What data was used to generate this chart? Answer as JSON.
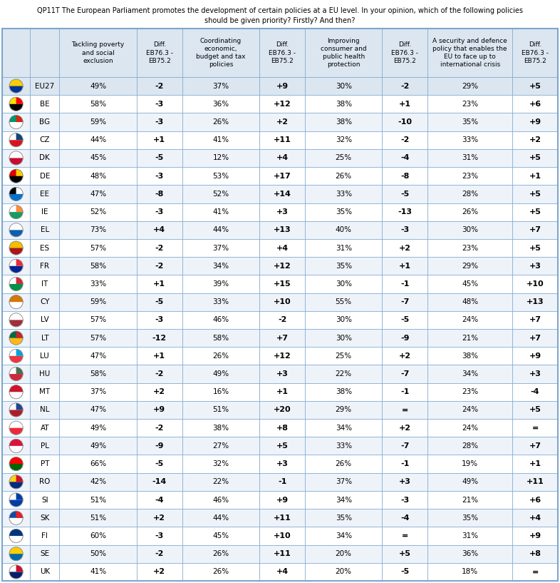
{
  "title_line1": "QP11T The European Parliament promotes the development of certain policies at a EU level. In your opinion, which of the following policies",
  "title_line2": "should be given priority? Firstly? And then?",
  "col_headers": [
    "Tackling poverty\nand social\nexclusion",
    "Diff.\nEB76.3 -\nEB75.2",
    "Coordinating\neconomic,\nbudget and tax\npolicies",
    "Diff.\nEB76.3 -\nEB75.2",
    "Improving\nconsumer and\npublic health\nprotection",
    "Diff.\nEB76.3 -\nEB75.2",
    "A security and defence\npolicy that enables the\nEU to face up to\ninternational crisis",
    "Diff.\nEB76.3 -\nEB75.2"
  ],
  "rows": [
    {
      "country": "EU27",
      "v1": "49%",
      "d1": "-2",
      "v2": "37%",
      "d2": "+9",
      "v3": "30%",
      "d3": "-2",
      "v4": "29%",
      "d4": "+5",
      "eu27": true
    },
    {
      "country": "BE",
      "v1": "58%",
      "d1": "-3",
      "v2": "36%",
      "d2": "+12",
      "v3": "38%",
      "d3": "+1",
      "v4": "23%",
      "d4": "+6"
    },
    {
      "country": "BG",
      "v1": "59%",
      "d1": "-3",
      "v2": "26%",
      "d2": "+2",
      "v3": "38%",
      "d3": "-10",
      "v4": "35%",
      "d4": "+9"
    },
    {
      "country": "CZ",
      "v1": "44%",
      "d1": "+1",
      "v2": "41%",
      "d2": "+11",
      "v3": "32%",
      "d3": "-2",
      "v4": "33%",
      "d4": "+2"
    },
    {
      "country": "DK",
      "v1": "45%",
      "d1": "-5",
      "v2": "12%",
      "d2": "+4",
      "v3": "25%",
      "d3": "-4",
      "v4": "31%",
      "d4": "+5"
    },
    {
      "country": "DE",
      "v1": "48%",
      "d1": "-3",
      "v2": "53%",
      "d2": "+17",
      "v3": "26%",
      "d3": "-8",
      "v4": "23%",
      "d4": "+1"
    },
    {
      "country": "EE",
      "v1": "47%",
      "d1": "-8",
      "v2": "52%",
      "d2": "+14",
      "v3": "33%",
      "d3": "-5",
      "v4": "28%",
      "d4": "+5"
    },
    {
      "country": "IE",
      "v1": "52%",
      "d1": "-3",
      "v2": "41%",
      "d2": "+3",
      "v3": "35%",
      "d3": "-13",
      "v4": "26%",
      "d4": "+5"
    },
    {
      "country": "EL",
      "v1": "73%",
      "d1": "+4",
      "v2": "44%",
      "d2": "+13",
      "v3": "40%",
      "d3": "-3",
      "v4": "30%",
      "d4": "+7"
    },
    {
      "country": "ES",
      "v1": "57%",
      "d1": "-2",
      "v2": "37%",
      "d2": "+4",
      "v3": "31%",
      "d3": "+2",
      "v4": "23%",
      "d4": "+5"
    },
    {
      "country": "FR",
      "v1": "58%",
      "d1": "-2",
      "v2": "34%",
      "d2": "+12",
      "v3": "35%",
      "d3": "+1",
      "v4": "29%",
      "d4": "+3"
    },
    {
      "country": "IT",
      "v1": "33%",
      "d1": "+1",
      "v2": "39%",
      "d2": "+15",
      "v3": "30%",
      "d3": "-1",
      "v4": "45%",
      "d4": "+10"
    },
    {
      "country": "CY",
      "v1": "59%",
      "d1": "-5",
      "v2": "33%",
      "d2": "+10",
      "v3": "55%",
      "d3": "-7",
      "v4": "48%",
      "d4": "+13"
    },
    {
      "country": "LV",
      "v1": "57%",
      "d1": "-3",
      "v2": "46%",
      "d2": "-2",
      "v3": "30%",
      "d3": "-5",
      "v4": "24%",
      "d4": "+7"
    },
    {
      "country": "LT",
      "v1": "57%",
      "d1": "-12",
      "v2": "58%",
      "d2": "+7",
      "v3": "30%",
      "d3": "-9",
      "v4": "21%",
      "d4": "+7"
    },
    {
      "country": "LU",
      "v1": "47%",
      "d1": "+1",
      "v2": "26%",
      "d2": "+12",
      "v3": "25%",
      "d3": "+2",
      "v4": "38%",
      "d4": "+9"
    },
    {
      "country": "HU",
      "v1": "58%",
      "d1": "-2",
      "v2": "49%",
      "d2": "+3",
      "v3": "22%",
      "d3": "-7",
      "v4": "34%",
      "d4": "+3"
    },
    {
      "country": "MT",
      "v1": "37%",
      "d1": "+2",
      "v2": "16%",
      "d2": "+1",
      "v3": "38%",
      "d3": "-1",
      "v4": "23%",
      "d4": "-4"
    },
    {
      "country": "NL",
      "v1": "47%",
      "d1": "+9",
      "v2": "51%",
      "d2": "+20",
      "v3": "29%",
      "d3": "=",
      "v4": "24%",
      "d4": "+5"
    },
    {
      "country": "AT",
      "v1": "49%",
      "d1": "-2",
      "v2": "38%",
      "d2": "+8",
      "v3": "34%",
      "d3": "+2",
      "v4": "24%",
      "d4": "="
    },
    {
      "country": "PL",
      "v1": "49%",
      "d1": "-9",
      "v2": "27%",
      "d2": "+5",
      "v3": "33%",
      "d3": "-7",
      "v4": "28%",
      "d4": "+7"
    },
    {
      "country": "PT",
      "v1": "66%",
      "d1": "-5",
      "v2": "32%",
      "d2": "+3",
      "v3": "26%",
      "d3": "-1",
      "v4": "19%",
      "d4": "+1"
    },
    {
      "country": "RO",
      "v1": "42%",
      "d1": "-14",
      "v2": "22%",
      "d2": "-1",
      "v3": "37%",
      "d3": "+3",
      "v4": "49%",
      "d4": "+11"
    },
    {
      "country": "SI",
      "v1": "51%",
      "d1": "-4",
      "v2": "46%",
      "d2": "+9",
      "v3": "34%",
      "d3": "-3",
      "v4": "21%",
      "d4": "+6"
    },
    {
      "country": "SK",
      "v1": "51%",
      "d1": "+2",
      "v2": "44%",
      "d2": "+11",
      "v3": "35%",
      "d3": "-4",
      "v4": "35%",
      "d4": "+4"
    },
    {
      "country": "FI",
      "v1": "60%",
      "d1": "-3",
      "v2": "45%",
      "d2": "+10",
      "v3": "34%",
      "d3": "=",
      "v4": "31%",
      "d4": "+9"
    },
    {
      "country": "SE",
      "v1": "50%",
      "d1": "-2",
      "v2": "26%",
      "d2": "+11",
      "v3": "20%",
      "d3": "+5",
      "v4": "36%",
      "d4": "+8"
    },
    {
      "country": "UK",
      "v1": "41%",
      "d1": "+2",
      "v2": "26%",
      "d2": "+4",
      "v3": "20%",
      "d3": "-5",
      "v4": "18%",
      "d4": "="
    }
  ],
  "header_bg": "#dce6f1",
  "eu27_bg": "#dce6f1",
  "row_bg_even": "#ffffff",
  "row_bg_odd": "#eef3fa",
  "border_color": "#7ba7cc",
  "title_color": "#000000",
  "flag_colors": {
    "EU27": [
      "#003399",
      "#ffcc00"
    ],
    "BE": [
      "#000000",
      "#ffdd00",
      "#ff0000"
    ],
    "BG": [
      "#ffffff",
      "#00966e",
      "#d62512"
    ],
    "CZ": [
      "#d7141a",
      "#ffffff",
      "#11457e"
    ],
    "DK": [
      "#c60c30",
      "#ffffff"
    ],
    "DE": [
      "#000000",
      "#dd0000",
      "#ffce00"
    ],
    "EE": [
      "#0072ce",
      "#000000",
      "#ffffff"
    ],
    "IE": [
      "#169b62",
      "#ffffff",
      "#ff883e"
    ],
    "EL": [
      "#0d5eaf",
      "#ffffff"
    ],
    "ES": [
      "#aa151b",
      "#f1bf00"
    ],
    "FR": [
      "#002395",
      "#ffffff",
      "#ed2939"
    ],
    "IT": [
      "#009246",
      "#ffffff",
      "#ce2b37"
    ],
    "CY": [
      "#ffffff",
      "#d57800"
    ],
    "LV": [
      "#9e3039",
      "#ffffff"
    ],
    "LT": [
      "#fdb913",
      "#006a44",
      "#c1272d"
    ],
    "LU": [
      "#ef3340",
      "#ffffff",
      "#00a3e0"
    ],
    "HU": [
      "#ce2939",
      "#ffffff",
      "#477050"
    ],
    "MT": [
      "#ffffff",
      "#cf142b"
    ],
    "NL": [
      "#ae1c28",
      "#ffffff",
      "#21468b"
    ],
    "AT": [
      "#ed2939",
      "#ffffff"
    ],
    "PL": [
      "#ffffff",
      "#dc143c"
    ],
    "PT": [
      "#006600",
      "#ff0000"
    ],
    "RO": [
      "#002b7f",
      "#fcd116",
      "#ce1126"
    ],
    "SI": [
      "#003da5",
      "#ffffff",
      "#003da5"
    ],
    "SK": [
      "#ffffff",
      "#0b4ea2",
      "#ee1c25"
    ],
    "FI": [
      "#ffffff",
      "#003580"
    ],
    "SE": [
      "#006aa7",
      "#fecc02"
    ],
    "UK": [
      "#012169",
      "#ffffff",
      "#c8102e"
    ]
  }
}
